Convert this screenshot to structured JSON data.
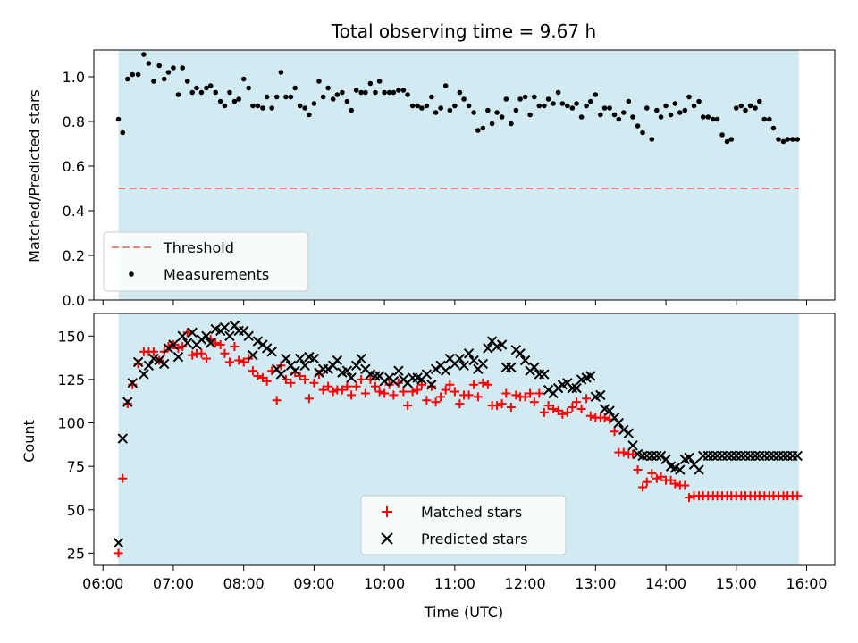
{
  "chart_data": [
    {
      "type": "scatter",
      "title": "Total observing time = 9.67 h",
      "xlabel": "",
      "ylabel": "Matched/Predicted stars",
      "xlim": [
        5.87,
        16.4
      ],
      "ylim": [
        0.0,
        1.12
      ],
      "yticks": [
        "0.0",
        "0.2",
        "0.4",
        "0.6",
        "0.8",
        "1.0"
      ],
      "shaded_span": [
        6.22,
        15.89
      ],
      "shade_color": "#add8e6",
      "threshold": 0.5,
      "threshold_color": "#f08080",
      "legend": {
        "placement": "lower-left",
        "entries": [
          "Threshold",
          "Measurements"
        ]
      },
      "series": [
        {
          "name": "Measurements",
          "marker": "dot",
          "color": "#000000",
          "x": [
            6.22,
            6.28,
            6.35,
            6.42,
            6.5,
            6.58,
            6.65,
            6.72,
            6.8,
            6.87,
            6.93,
            7.0,
            7.07,
            7.13,
            7.2,
            7.27,
            7.33,
            7.4,
            7.47,
            7.53,
            7.6,
            7.67,
            7.73,
            7.8,
            7.87,
            7.93,
            8.0,
            8.07,
            8.13,
            8.2,
            8.27,
            8.33,
            8.4,
            8.47,
            8.53,
            8.6,
            8.67,
            8.73,
            8.8,
            8.87,
            8.93,
            9.0,
            9.07,
            9.13,
            9.2,
            9.27,
            9.33,
            9.4,
            9.47,
            9.53,
            9.6,
            9.67,
            9.73,
            9.8,
            9.87,
            9.93,
            10.0,
            10.07,
            10.13,
            10.2,
            10.27,
            10.33,
            10.4,
            10.47,
            10.53,
            10.6,
            10.67,
            10.73,
            10.8,
            10.87,
            10.93,
            11.0,
            11.07,
            11.13,
            11.2,
            11.27,
            11.33,
            11.4,
            11.47,
            11.53,
            11.6,
            11.67,
            11.73,
            11.8,
            11.87,
            11.93,
            12.0,
            12.07,
            12.13,
            12.2,
            12.27,
            12.33,
            12.4,
            12.47,
            12.53,
            12.6,
            12.67,
            12.73,
            12.8,
            12.87,
            12.93,
            13.0,
            13.07,
            13.13,
            13.2,
            13.27,
            13.33,
            13.4,
            13.47,
            13.53,
            13.6,
            13.67,
            13.73,
            13.8,
            13.87,
            13.93,
            14.0,
            14.07,
            14.13,
            14.2,
            14.27,
            14.33,
            14.4,
            14.47,
            14.53,
            14.6,
            14.67,
            14.73,
            14.8,
            14.87,
            14.93,
            15.0,
            15.07,
            15.13,
            15.2,
            15.27,
            15.33,
            15.4,
            15.47,
            15.53,
            15.6,
            15.67,
            15.73,
            15.8,
            15.87
          ],
          "y": [
            0.81,
            0.75,
            0.99,
            1.01,
            1.01,
            1.1,
            1.06,
            0.98,
            1.05,
            0.99,
            1.02,
            1.04,
            0.92,
            1.04,
            0.98,
            0.93,
            0.95,
            0.93,
            0.95,
            0.96,
            0.93,
            0.89,
            0.87,
            0.93,
            0.89,
            0.9,
            0.99,
            0.95,
            0.87,
            0.87,
            0.86,
            0.91,
            0.86,
            0.91,
            1.02,
            0.91,
            0.91,
            0.95,
            0.87,
            0.86,
            0.83,
            0.88,
            0.98,
            0.91,
            0.95,
            0.9,
            0.92,
            0.93,
            0.89,
            0.85,
            0.94,
            0.93,
            0.93,
            0.97,
            0.93,
            0.98,
            0.93,
            0.93,
            0.93,
            0.94,
            0.94,
            0.92,
            0.87,
            0.87,
            0.86,
            0.87,
            0.91,
            0.84,
            0.86,
            0.96,
            0.85,
            0.87,
            0.93,
            0.9,
            0.87,
            0.84,
            0.76,
            0.77,
            0.85,
            0.79,
            0.84,
            0.82,
            0.9,
            0.79,
            0.85,
            0.9,
            0.91,
            0.83,
            0.91,
            0.87,
            0.87,
            0.9,
            0.88,
            0.93,
            0.88,
            0.87,
            0.86,
            0.88,
            0.82,
            0.87,
            0.89,
            0.92,
            0.83,
            0.86,
            0.86,
            0.83,
            0.81,
            0.84,
            0.89,
            0.82,
            0.78,
            0.75,
            0.86,
            0.72,
            0.85,
            0.82,
            0.87,
            0.83,
            0.88,
            0.84,
            0.85,
            0.91,
            0.87,
            0.89,
            0.82,
            0.82,
            0.81,
            0.81,
            0.74,
            0.71,
            0.72,
            0.86,
            0.87,
            0.85,
            0.87,
            0.86,
            0.89,
            0.81,
            0.81,
            0.77,
            0.72,
            0.71,
            0.72,
            0.72,
            0.72
          ]
        }
      ]
    },
    {
      "type": "scatter",
      "title": "",
      "xlabel": "Time (UTC)",
      "ylabel": "Count",
      "xlim": [
        5.87,
        16.4
      ],
      "ylim": [
        18,
        163
      ],
      "yticks": [
        "25",
        "50",
        "75",
        "100",
        "125",
        "150"
      ],
      "xticks": [
        "06:00",
        "07:00",
        "08:00",
        "09:00",
        "10:00",
        "11:00",
        "12:00",
        "13:00",
        "14:00",
        "15:00",
        "16:00"
      ],
      "shaded_span": [
        6.22,
        15.89
      ],
      "shade_color": "#add8e6",
      "legend": {
        "placement": "lower-center",
        "entries": [
          "Matched stars",
          "Predicted stars"
        ]
      },
      "series": [
        {
          "name": "Matched stars",
          "marker": "plus",
          "color": "#ff0000",
          "x": [
            6.22,
            6.28,
            6.35,
            6.42,
            6.5,
            6.58,
            6.65,
            6.72,
            6.8,
            6.87,
            6.93,
            7.0,
            7.07,
            7.13,
            7.2,
            7.27,
            7.33,
            7.4,
            7.47,
            7.53,
            7.6,
            7.67,
            7.73,
            7.8,
            7.87,
            7.93,
            8.0,
            8.07,
            8.13,
            8.2,
            8.27,
            8.33,
            8.4,
            8.47,
            8.53,
            8.6,
            8.67,
            8.73,
            8.8,
            8.87,
            8.93,
            9.0,
            9.07,
            9.13,
            9.2,
            9.27,
            9.33,
            9.4,
            9.47,
            9.53,
            9.6,
            9.67,
            9.73,
            9.8,
            9.87,
            9.93,
            10.0,
            10.07,
            10.13,
            10.2,
            10.27,
            10.33,
            10.4,
            10.47,
            10.53,
            10.6,
            10.67,
            10.73,
            10.8,
            10.87,
            10.93,
            11.0,
            11.07,
            11.13,
            11.2,
            11.27,
            11.33,
            11.4,
            11.47,
            11.53,
            11.6,
            11.67,
            11.73,
            11.8,
            11.87,
            11.93,
            12.0,
            12.07,
            12.13,
            12.2,
            12.27,
            12.33,
            12.4,
            12.47,
            12.53,
            12.6,
            12.67,
            12.73,
            12.8,
            12.87,
            12.93,
            13.0,
            13.07,
            13.13,
            13.2,
            13.27,
            13.33,
            13.4,
            13.47,
            13.53,
            13.6,
            13.67,
            13.73,
            13.8,
            13.87,
            13.93,
            14.0,
            14.07,
            14.13,
            14.2,
            14.27,
            14.33,
            14.4,
            14.47,
            14.53,
            14.6,
            14.67,
            14.73,
            14.8,
            14.87,
            14.93,
            15.0,
            15.07,
            15.13,
            15.2,
            15.27,
            15.33,
            15.4,
            15.47,
            15.53,
            15.6,
            15.67,
            15.73,
            15.8,
            15.87
          ],
          "y": [
            25,
            68,
            111,
            122,
            134,
            141,
            141,
            141,
            136,
            141,
            144,
            145,
            143,
            144,
            152,
            139,
            140,
            140,
            137,
            148,
            146,
            145,
            140,
            135,
            144,
            136,
            135,
            137,
            130,
            127,
            126,
            124,
            130,
            113,
            133,
            125,
            123,
            129,
            127,
            125,
            114,
            123,
            128,
            119,
            121,
            118,
            119,
            119,
            121,
            116,
            121,
            125,
            117,
            125,
            121,
            118,
            117,
            122,
            116,
            123,
            118,
            110,
            118,
            119,
            122,
            113,
            121,
            112,
            115,
            119,
            122,
            118,
            111,
            116,
            116,
            122,
            115,
            123,
            122,
            110,
            110,
            111,
            117,
            109,
            116,
            115,
            115,
            117,
            112,
            117,
            106,
            110,
            108,
            107,
            105,
            106,
            109,
            112,
            108,
            114,
            104,
            103,
            103,
            103,
            102,
            95,
            83,
            83,
            82,
            82,
            73,
            63,
            66,
            71,
            68,
            69,
            67,
            67,
            65,
            64,
            64,
            57,
            58,
            58,
            58,
            58,
            58,
            58,
            58,
            58,
            58,
            58,
            58,
            58,
            58,
            58,
            58,
            58,
            58,
            58,
            58,
            58,
            58,
            58,
            58
          ]
        },
        {
          "name": "Predicted stars",
          "marker": "x",
          "color": "#000000",
          "x": [
            6.22,
            6.28,
            6.35,
            6.42,
            6.5,
            6.58,
            6.65,
            6.72,
            6.8,
            6.87,
            6.93,
            7.0,
            7.07,
            7.13,
            7.2,
            7.27,
            7.33,
            7.4,
            7.47,
            7.53,
            7.6,
            7.67,
            7.73,
            7.8,
            7.87,
            7.93,
            8.0,
            8.07,
            8.13,
            8.2,
            8.27,
            8.33,
            8.4,
            8.47,
            8.53,
            8.6,
            8.67,
            8.73,
            8.8,
            8.87,
            8.93,
            9.0,
            9.07,
            9.13,
            9.2,
            9.27,
            9.33,
            9.4,
            9.47,
            9.53,
            9.6,
            9.67,
            9.73,
            9.8,
            9.87,
            9.93,
            10.0,
            10.07,
            10.13,
            10.2,
            10.27,
            10.33,
            10.4,
            10.47,
            10.53,
            10.6,
            10.67,
            10.73,
            10.8,
            10.87,
            10.93,
            11.0,
            11.07,
            11.13,
            11.2,
            11.27,
            11.33,
            11.4,
            11.47,
            11.53,
            11.6,
            11.67,
            11.73,
            11.8,
            11.87,
            11.93,
            12.0,
            12.07,
            12.13,
            12.2,
            12.27,
            12.33,
            12.4,
            12.47,
            12.53,
            12.6,
            12.67,
            12.73,
            12.8,
            12.87,
            12.93,
            13.0,
            13.07,
            13.13,
            13.2,
            13.27,
            13.33,
            13.4,
            13.47,
            13.53,
            13.6,
            13.67,
            13.73,
            13.8,
            13.87,
            13.93,
            14.0,
            14.07,
            14.13,
            14.2,
            14.27,
            14.33,
            14.4,
            14.47,
            14.53,
            14.6,
            14.67,
            14.73,
            14.8,
            14.87,
            14.93,
            15.0,
            15.07,
            15.13,
            15.2,
            15.27,
            15.33,
            15.4,
            15.47,
            15.53,
            15.6,
            15.67,
            15.73,
            15.8,
            15.87
          ],
          "y": [
            31,
            91,
            112,
            123,
            135,
            128,
            133,
            137,
            136,
            134,
            143,
            145,
            138,
            150,
            146,
            152,
            145,
            148,
            150,
            146,
            154,
            153,
            155,
            150,
            156,
            153,
            153,
            150,
            139,
            147,
            145,
            143,
            141,
            131,
            128,
            137,
            133,
            130,
            137,
            133,
            138,
            137,
            129,
            131,
            131,
            133,
            136,
            129,
            130,
            126,
            133,
            137,
            131,
            128,
            127,
            127,
            124,
            126,
            124,
            130,
            125,
            123,
            126,
            126,
            125,
            128,
            122,
            131,
            133,
            130,
            137,
            134,
            137,
            133,
            140,
            136,
            131,
            134,
            143,
            147,
            144,
            145,
            132,
            132,
            142,
            140,
            136,
            130,
            132,
            128,
            128,
            119,
            117,
            120,
            122,
            123,
            120,
            120,
            125,
            126,
            127,
            115,
            116,
            108,
            107,
            103,
            100,
            96,
            94,
            87,
            82,
            81,
            81,
            81,
            81,
            81,
            79,
            75,
            74,
            73,
            79,
            80,
            76,
            73,
            81,
            81,
            81,
            81,
            81,
            81,
            81,
            81,
            81,
            81,
            81,
            81,
            81,
            81,
            81,
            81,
            81,
            81,
            81,
            81,
            81
          ]
        }
      ]
    }
  ]
}
